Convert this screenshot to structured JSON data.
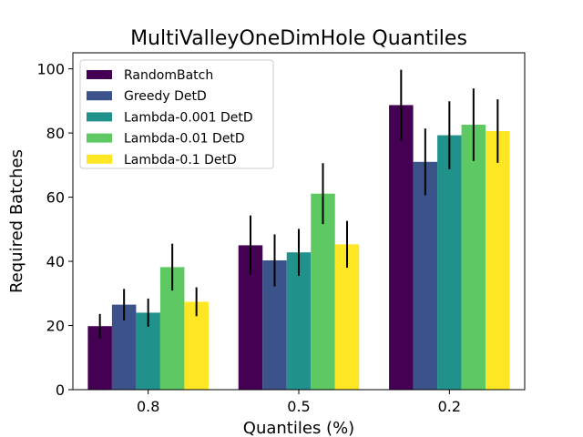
{
  "chart_data": {
    "type": "bar",
    "title": "MultiValleyOneDimHole Quantiles",
    "xlabel": "Quantiles (%)",
    "ylabel": "Required Batches",
    "categories": [
      "0.8",
      "0.5",
      "0.2"
    ],
    "ylim": [
      0,
      105
    ],
    "yticks": [
      0,
      20,
      40,
      60,
      80,
      100
    ],
    "grid": false,
    "legend_position": "top-left",
    "error_bars": true,
    "series": [
      {
        "name": "RandomBatch",
        "color": "#440154",
        "values": [
          19.8,
          45.0,
          88.7
        ],
        "errors": [
          3.8,
          9.3,
          11.0
        ]
      },
      {
        "name": "Greedy DetD",
        "color": "#3b528b",
        "values": [
          26.5,
          40.3,
          71.0
        ],
        "errors": [
          4.9,
          8.1,
          10.4
        ]
      },
      {
        "name": "Lambda-0.001 DetD",
        "color": "#21918c",
        "values": [
          24.0,
          42.8,
          79.3
        ],
        "errors": [
          4.4,
          7.3,
          10.6
        ]
      },
      {
        "name": "Lambda-0.01 DetD",
        "color": "#5ec962",
        "values": [
          38.2,
          61.1,
          82.6
        ],
        "errors": [
          7.3,
          9.5,
          11.3
        ]
      },
      {
        "name": "Lambda-0.1 DetD",
        "color": "#fde725",
        "values": [
          27.4,
          45.3,
          80.6
        ],
        "errors": [
          4.5,
          7.3,
          9.9
        ]
      }
    ]
  }
}
